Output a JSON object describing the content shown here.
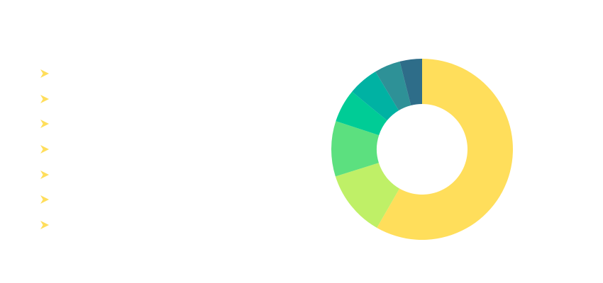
{
  "chart_data": {
    "type": "pie",
    "variant": "donut",
    "title": "",
    "legend_position": "left",
    "series": [
      {
        "name": "",
        "value": 59,
        "color": "#FFDE5B"
      },
      {
        "name": "",
        "value": 12,
        "color": "#BFF067"
      },
      {
        "name": "",
        "value": 10,
        "color": "#5CE07F"
      },
      {
        "name": "",
        "value": 6,
        "color": "#00CC96"
      },
      {
        "name": "",
        "value": 5.5,
        "color": "#00B2A3"
      },
      {
        "name": "",
        "value": 4.7,
        "color": "#2E9197"
      },
      {
        "name": "",
        "value": 4,
        "color": "#2E6D89"
      }
    ],
    "legend_marker": {
      "icon": "chevron-arrow-icon",
      "color": "#FFDE5B"
    }
  }
}
